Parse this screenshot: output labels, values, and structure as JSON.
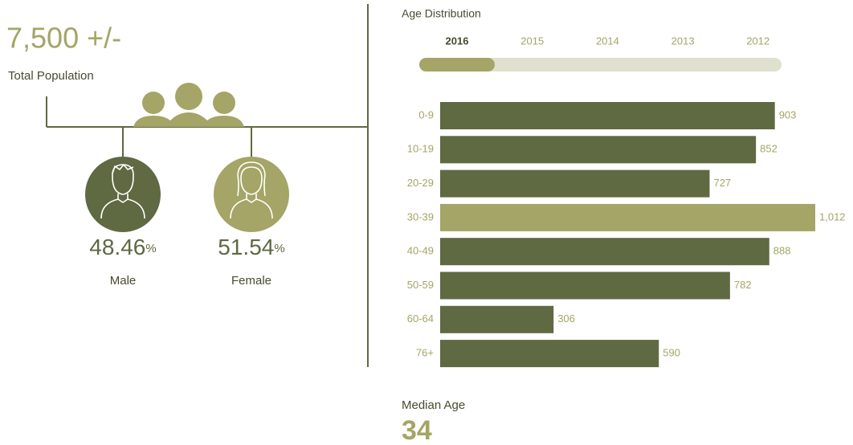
{
  "population": {
    "total": "7,500 +/-",
    "label": "Total Population"
  },
  "gender": [
    {
      "value": 48.46,
      "unit": "%",
      "label": "Male"
    },
    {
      "value": 51.54,
      "unit": "%",
      "label": "Female"
    }
  ],
  "chart_data": {
    "type": "bar",
    "orientation": "horizontal",
    "title": "Age Distribution",
    "tabs": [
      "2016",
      "2015",
      "2014",
      "2013",
      "2012"
    ],
    "selected_tab": "2016",
    "categories": [
      "0-9",
      "10-19",
      "20-29",
      "30-39",
      "40-49",
      "50-59",
      "60-64",
      "76+"
    ],
    "values": [
      903,
      852,
      727,
      1012,
      888,
      782,
      306,
      590
    ],
    "value_labels": [
      "903",
      "852",
      "727",
      "1,012",
      "888",
      "782",
      "306",
      "590"
    ],
    "colors": [
      "#5f6942",
      "#5f6942",
      "#5f6942",
      "#a4a566",
      "#5f6942",
      "#5f6942",
      "#5f6942",
      "#5f6942"
    ]
  },
  "median": {
    "label": "Median Age",
    "value": 34
  }
}
